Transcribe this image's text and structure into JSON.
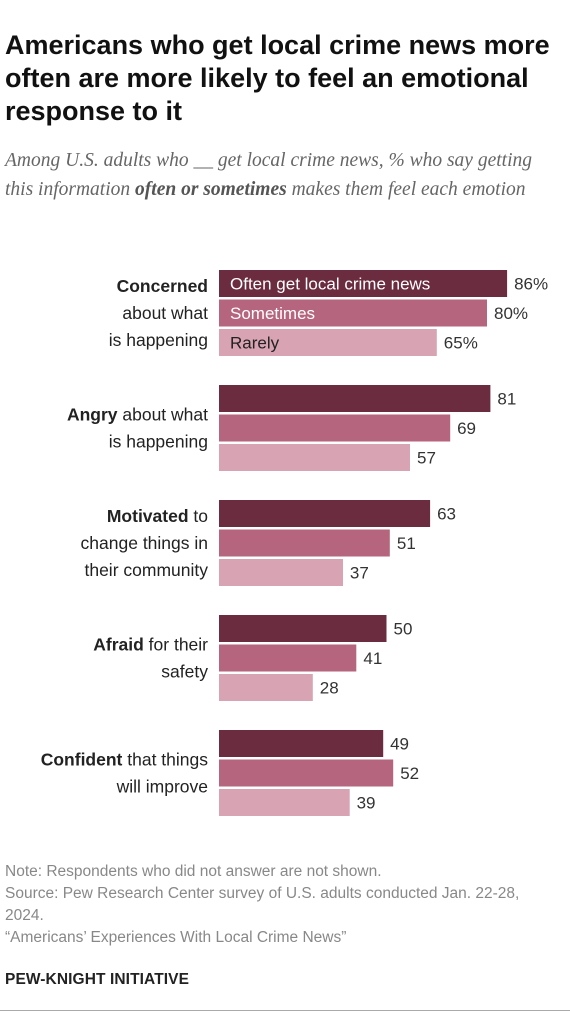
{
  "title": "Americans who get local crime news more often are more likely to feel an emotional response to it",
  "subtitle": {
    "part1": "Among U.S. adults who __ get local crime news, % who say getting this information ",
    "emphasis": "often or sometimes",
    "part2": " makes them feel each emotion"
  },
  "chart_data": {
    "type": "bar",
    "orientation": "horizontal",
    "title": "",
    "xlabel": "",
    "ylabel": "",
    "xlim": [
      0,
      100
    ],
    "grid": false,
    "legend": "inside-first-group",
    "value_suffix_first_group": "%",
    "categories": [
      {
        "bold": "Concerned",
        "rest": " about what is happening"
      },
      {
        "bold": "Angry",
        "rest": " about what is happening"
      },
      {
        "bold": "Motivated",
        "rest": " to change things in their community"
      },
      {
        "bold": "Afraid",
        "rest": " for their safety"
      },
      {
        "bold": "Confident",
        "rest": " that things will improve"
      }
    ],
    "series": [
      {
        "name": "Often get local crime news",
        "color": "#6b2c3f",
        "label_color": "#ffffff",
        "values": [
          86,
          81,
          63,
          50,
          49
        ]
      },
      {
        "name": "Sometimes",
        "color": "#b5657d",
        "label_color": "#ffffff",
        "values": [
          80,
          69,
          51,
          41,
          52
        ]
      },
      {
        "name": "Rarely",
        "color": "#d8a3b2",
        "label_color": "#222222",
        "values": [
          65,
          57,
          37,
          28,
          39
        ]
      }
    ]
  },
  "notes": {
    "note": "Note: Respondents who did not answer are not shown.",
    "source": "Source: Pew Research Center survey of U.S. adults conducted Jan. 22-28, 2024.",
    "report": "“Americans’ Experiences With Local Crime News”"
  },
  "brand": "PEW-KNIGHT INITIATIVE"
}
